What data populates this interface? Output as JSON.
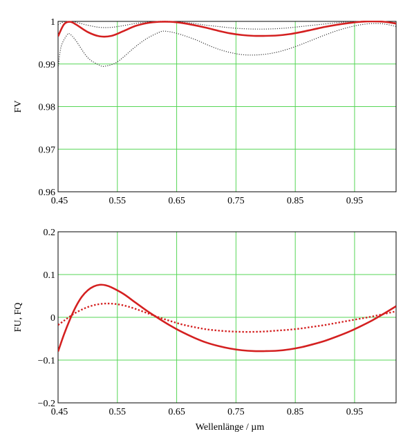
{
  "chart_data": [
    {
      "type": "line",
      "title": "",
      "xlabel": "",
      "ylabel": "FV",
      "xlim": [
        0.45,
        1.02
      ],
      "ylim": [
        0.96,
        1.0
      ],
      "xticks": [
        0.45,
        0.55,
        0.65,
        0.75,
        0.85,
        0.95
      ],
      "xtick_labels": [
        "0.45",
        "0.55",
        "0.65",
        "0.75",
        "0.85",
        "0.95"
      ],
      "yticks": [
        0.96,
        0.97,
        0.98,
        0.99,
        1.0
      ],
      "ytick_labels": [
        "0.96",
        "0.97",
        "0.98",
        "0.99",
        "1"
      ],
      "grid": true,
      "series": [
        {
          "style": "solid",
          "color": "#d42020",
          "x": [
            0.45,
            0.46,
            0.47,
            0.48,
            0.5,
            0.52,
            0.54,
            0.56,
            0.58,
            0.6,
            0.62,
            0.64,
            0.66,
            0.68,
            0.7,
            0.72,
            0.74,
            0.76,
            0.78,
            0.8,
            0.82,
            0.84,
            0.86,
            0.88,
            0.9,
            0.92,
            0.94,
            0.96,
            0.98,
            1.0,
            1.02
          ],
          "y": [
            0.9965,
            0.9993,
            0.9999,
            0.9993,
            0.9975,
            0.9965,
            0.9966,
            0.9977,
            0.9989,
            0.9996,
            0.9999,
            0.9999,
            0.9996,
            0.9991,
            0.9985,
            0.9978,
            0.9972,
            0.9968,
            0.9966,
            0.9966,
            0.9967,
            0.997,
            0.9975,
            0.9981,
            0.9987,
            0.9992,
            0.9996,
            0.9999,
            1.0,
            0.9999,
            0.9995
          ]
        },
        {
          "style": "dotted",
          "color": "#333333",
          "x": [
            0.45,
            0.46,
            0.47,
            0.48,
            0.5,
            0.52,
            0.54,
            0.56,
            0.58,
            0.6,
            0.62,
            0.64,
            0.66,
            0.68,
            0.7,
            0.72,
            0.74,
            0.76,
            0.78,
            0.8,
            0.82,
            0.84,
            0.86,
            0.88,
            0.9,
            0.92,
            0.94,
            0.96,
            0.98,
            1.0,
            1.02
          ],
          "y": [
            0.9992,
            0.9999,
            1.0,
            0.9998,
            0.9991,
            0.9986,
            0.9986,
            0.999,
            0.9995,
            0.9998,
            1.0,
            1.0,
            0.9998,
            0.9995,
            0.9991,
            0.9988,
            0.9985,
            0.9983,
            0.9982,
            0.9982,
            0.9983,
            0.9985,
            0.9988,
            0.9991,
            0.9994,
            0.9997,
            0.9999,
            1.0,
            1.0,
            0.9999,
            0.9997
          ]
        },
        {
          "style": "dotted",
          "color": "#333333",
          "x": [
            0.45,
            0.455,
            0.465,
            0.47,
            0.48,
            0.5,
            0.52,
            0.53,
            0.55,
            0.58,
            0.6,
            0.62,
            0.63,
            0.65,
            0.68,
            0.7,
            0.72,
            0.74,
            0.76,
            0.78,
            0.8,
            0.82,
            0.84,
            0.86,
            0.88,
            0.9,
            0.92,
            0.94,
            0.96,
            0.98,
            1.0,
            1.02
          ],
          "y": [
            0.989,
            0.994,
            0.9968,
            0.997,
            0.9955,
            0.9915,
            0.9897,
            0.9895,
            0.9905,
            0.994,
            0.996,
            0.9974,
            0.9977,
            0.9972,
            0.9958,
            0.9946,
            0.9935,
            0.9927,
            0.9922,
            0.9921,
            0.9923,
            0.9928,
            0.9936,
            0.9946,
            0.9957,
            0.9968,
            0.9978,
            0.9986,
            0.9992,
            0.9995,
            0.9994,
            0.9988
          ]
        }
      ]
    },
    {
      "type": "line",
      "title": "",
      "xlabel": "Wellenlänge / µm",
      "ylabel": "FU, FQ",
      "xlim": [
        0.45,
        1.02
      ],
      "ylim": [
        -0.2,
        0.2
      ],
      "xticks": [
        0.45,
        0.55,
        0.65,
        0.75,
        0.85,
        0.95
      ],
      "xtick_labels": [
        "0.45",
        "0.55",
        "0.65",
        "0.75",
        "0.85",
        "0.95"
      ],
      "yticks": [
        -0.2,
        -0.1,
        0,
        0.1,
        0.2
      ],
      "ytick_labels": [
        "−0.2",
        "−0.1",
        "0",
        "0.1",
        "0.2"
      ],
      "grid": true,
      "series": [
        {
          "style": "solid",
          "color": "#d42020",
          "x": [
            0.45,
            0.46,
            0.47,
            0.48,
            0.49,
            0.5,
            0.51,
            0.52,
            0.53,
            0.54,
            0.56,
            0.58,
            0.6,
            0.62,
            0.64,
            0.66,
            0.68,
            0.7,
            0.72,
            0.74,
            0.76,
            0.78,
            0.8,
            0.82,
            0.84,
            0.86,
            0.88,
            0.9,
            0.92,
            0.94,
            0.96,
            0.98,
            1.0,
            1.02
          ],
          "y": [
            -0.08,
            -0.04,
            -0.005,
            0.025,
            0.048,
            0.063,
            0.072,
            0.076,
            0.075,
            0.07,
            0.055,
            0.035,
            0.015,
            -0.003,
            -0.02,
            -0.035,
            -0.048,
            -0.059,
            -0.067,
            -0.073,
            -0.077,
            -0.079,
            -0.079,
            -0.078,
            -0.075,
            -0.07,
            -0.063,
            -0.055,
            -0.045,
            -0.034,
            -0.021,
            -0.007,
            0.009,
            0.026
          ]
        },
        {
          "style": "dotted",
          "color": "#d42020",
          "x": [
            0.45,
            0.46,
            0.47,
            0.48,
            0.5,
            0.52,
            0.54,
            0.56,
            0.58,
            0.6,
            0.62,
            0.64,
            0.66,
            0.68,
            0.7,
            0.72,
            0.74,
            0.76,
            0.78,
            0.8,
            0.82,
            0.84,
            0.86,
            0.88,
            0.9,
            0.92,
            0.94,
            0.96,
            0.98,
            1.0,
            1.02
          ],
          "y": [
            -0.018,
            -0.008,
            0.002,
            0.011,
            0.024,
            0.031,
            0.032,
            0.028,
            0.02,
            0.01,
            0.0,
            -0.009,
            -0.017,
            -0.023,
            -0.028,
            -0.031,
            -0.033,
            -0.034,
            -0.034,
            -0.033,
            -0.031,
            -0.029,
            -0.026,
            -0.022,
            -0.018,
            -0.013,
            -0.008,
            -0.003,
            0.002,
            0.008,
            0.014
          ]
        }
      ]
    }
  ]
}
